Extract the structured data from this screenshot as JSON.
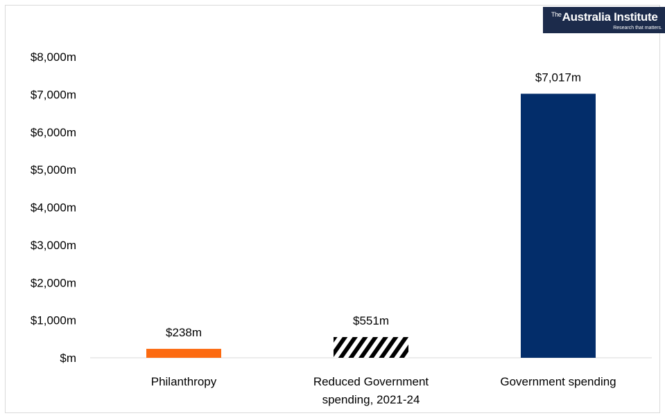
{
  "chart_data": {
    "type": "bar",
    "categories": [
      "Philanthropy",
      "Reduced Government spending, 2021-24",
      "Government spending"
    ],
    "values": [
      238,
      551,
      7017
    ],
    "data_labels": [
      "$238m",
      "$551m",
      "$7,017m"
    ],
    "bar_styles": [
      "solid",
      "hatched",
      "solid"
    ],
    "bar_colors": [
      "#fc6a10",
      "#000000",
      "#032d6a"
    ],
    "y_ticks": [
      0,
      1000,
      2000,
      3000,
      4000,
      5000,
      6000,
      7000,
      8000
    ],
    "y_tick_labels": [
      "$m",
      "$1,000m",
      "$2,000m",
      "$3,000m",
      "$4,000m",
      "$5,000m",
      "$6,000m",
      "$7,000m",
      "$8,000m"
    ],
    "ylim": [
      0,
      8000
    ],
    "title": "",
    "xlabel": "",
    "ylabel": "",
    "grid": false,
    "legend": "none"
  },
  "logo": {
    "prefix": "The",
    "name": "Australia Institute",
    "tagline": "Research that matters."
  }
}
